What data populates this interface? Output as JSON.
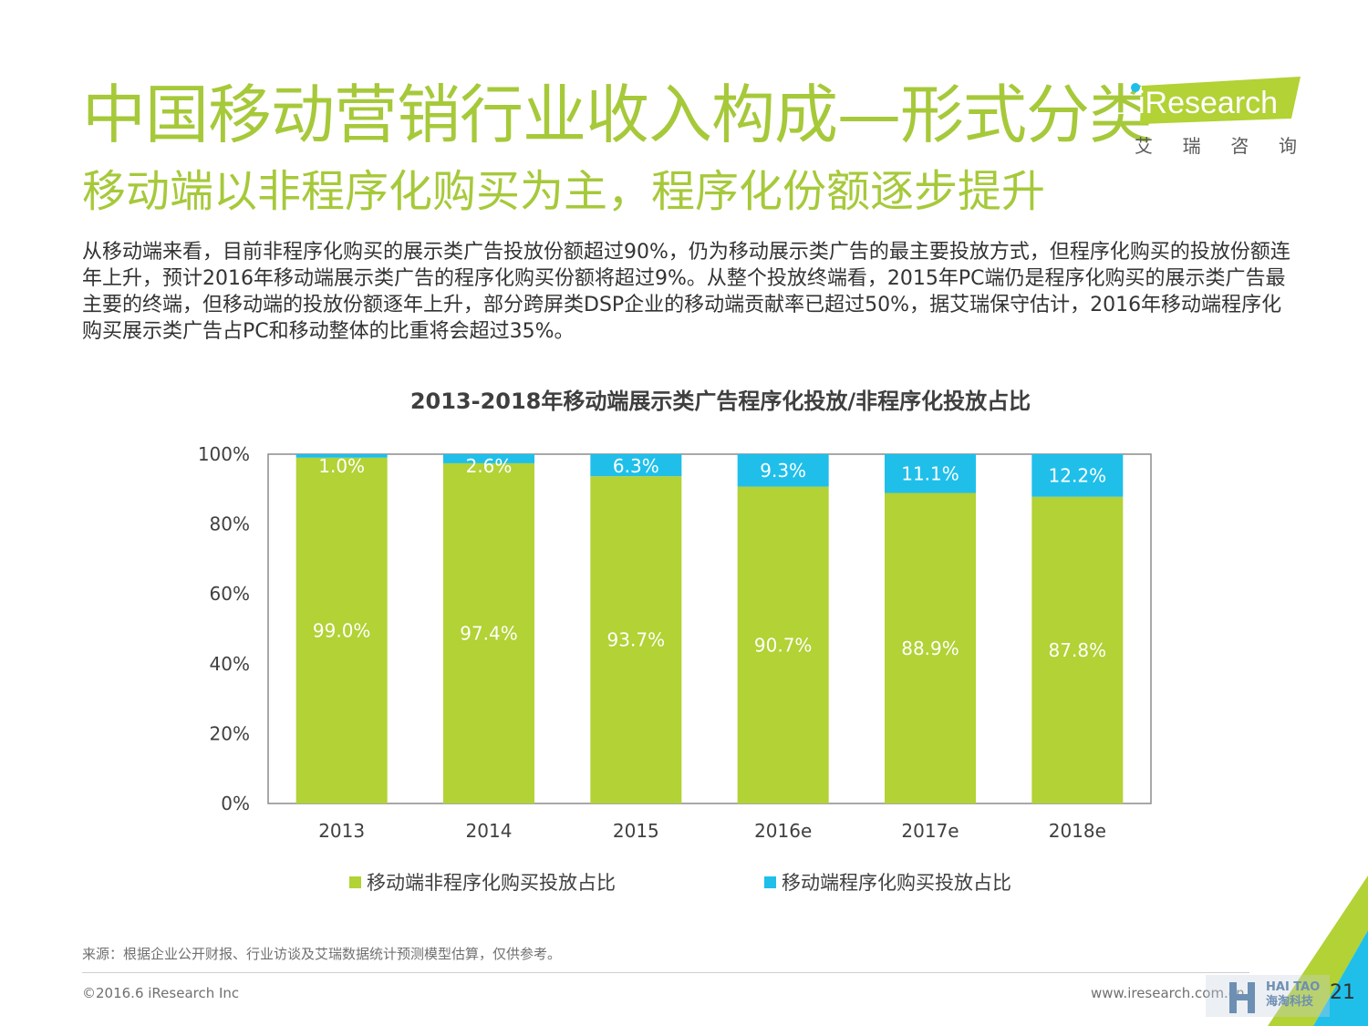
{
  "header": {
    "title": "中国移动营销行业收入构成—形式分类",
    "subtitle": "移动端以非程序化购买为主，程序化份额逐步提升",
    "logo_word": "iResearch",
    "logo_cn": [
      "艾",
      "瑞",
      "咨",
      "询"
    ]
  },
  "description": "从移动端来看，目前非程序化购买的展示类广告投放份额超过90%，仍为移动展示类广告的最主要投放方式，但程序化购买的投放份额连年上升，预计2016年移动端展示类广告的程序化购买份额将超过9%。从整个投放终端看，2015年PC端仍是程序化购买的展示类广告最主要的终端，但移动端的投放份额逐年上升，部分跨屏类DSP企业的移动端贡献率已超过50%，据艾瑞保守估计，2016年移动端程序化购买展示类广告占PC和移动整体的比重将会超过35%。",
  "chart_data": {
    "type": "bar",
    "stacked": true,
    "title": "2013-2018年移动端展示类广告程序化投放/非程序化投放占比",
    "categories": [
      "2013",
      "2014",
      "2015",
      "2016e",
      "2017e",
      "2018e"
    ],
    "series": [
      {
        "name": "移动端非程序化购买投放占比",
        "values": [
          99.0,
          97.4,
          93.7,
          90.7,
          88.9,
          87.8
        ],
        "labels": [
          "99.0%",
          "97.4%",
          "93.7%",
          "90.7%",
          "88.9%",
          "87.8%"
        ],
        "color": "#b2d235"
      },
      {
        "name": "移动端程序化购买投放占比",
        "values": [
          1.0,
          2.6,
          6.3,
          9.3,
          11.1,
          12.2
        ],
        "labels": [
          "1.0%",
          "2.6%",
          "6.3%",
          "9.3%",
          "11.1%",
          "12.2%"
        ],
        "color": "#1fbfea"
      }
    ],
    "yticks": [
      "0%",
      "20%",
      "40%",
      "60%",
      "80%",
      "100%"
    ],
    "ylim": [
      0,
      100
    ],
    "grid": false,
    "legend_position": "bottom"
  },
  "footer": {
    "source": "来源：根据企业公开财报、行业访谈及艾瑞数据统计预测模型估算，仅供参考。",
    "copyright": "©2016.6 iResearch Inc",
    "website": "www.iresearch.com.cn",
    "page_number": "21",
    "watermark_en": "HAI TAO",
    "watermark_cn": "海淘科技"
  },
  "colors": {
    "brand_green": "#a6c93a",
    "bar_green": "#b2d235",
    "bar_blue": "#1fbfea"
  }
}
